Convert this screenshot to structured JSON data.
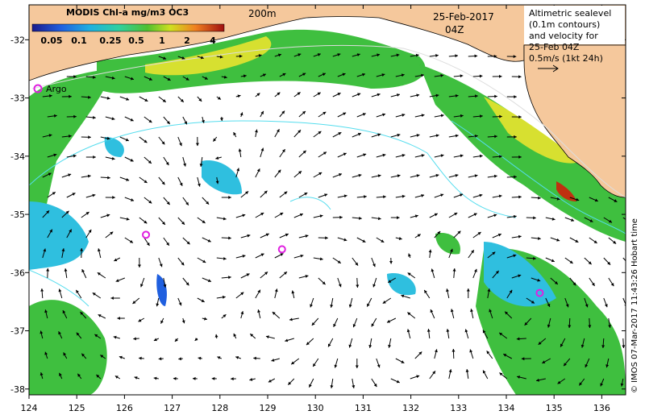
{
  "figure": {
    "colorbar_title": "MODIS Chl-a mg/m3 OC3",
    "colorbar_ticks": [
      "0.05",
      "0.1",
      "0.25",
      "0.5",
      "1",
      "2",
      "4"
    ],
    "contour_label": "200m",
    "date": "25-Feb-2017",
    "time": "04Z",
    "legend_lines": [
      "Altimetric sealevel",
      "(0.1m contours)",
      "and velocity for",
      "25-Feb 04Z",
      "0.5m/s (1kt 24h)"
    ],
    "argo_label": "Argo",
    "credit": "© IMOS 07-Mar-2017 11:43:26 Hobart time",
    "lon_ticks": [
      "124",
      "125",
      "126",
      "127",
      "128",
      "129",
      "130",
      "131",
      "132",
      "133",
      "134",
      "135",
      "136"
    ],
    "lat_ticks": [
      "-32",
      "-33",
      "-34",
      "-35",
      "-36",
      "-37",
      "-38"
    ]
  },
  "colors": {
    "land": "#f5c89c",
    "cloud": "#ffffff",
    "ocean_green": "#3fbf3f",
    "ocean_yellow": "#d7e030",
    "ocean_cyan": "#2fbfdf",
    "ocean_blue": "#1f5fdf",
    "shelf_red": "#c03010",
    "contour": "#55ddee",
    "argo": "#e020e0"
  },
  "map_data": {
    "extent": {
      "lon": [
        124,
        136.5
      ],
      "lat": [
        -38.1,
        -31.4
      ]
    },
    "argo_floats": [
      {
        "lon": 124.2,
        "lat": -32.8
      },
      {
        "lon": 126.45,
        "lat": -35.35
      },
      {
        "lon": 129.3,
        "lat": -35.6
      },
      {
        "lon": 134.7,
        "lat": -36.35
      }
    ]
  }
}
